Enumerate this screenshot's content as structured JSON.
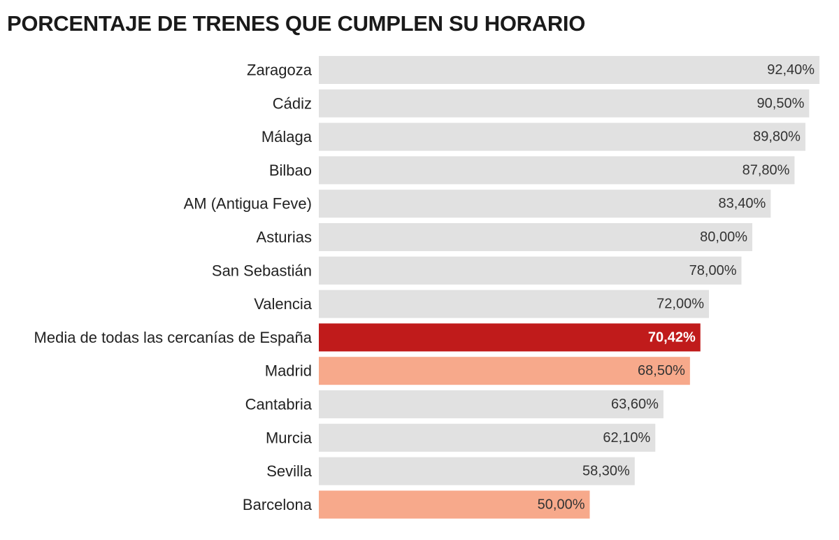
{
  "chart_data": {
    "type": "bar",
    "orientation": "horizontal",
    "title": "PORCENTAJE DE TRENES QUE CUMPLEN SU HORARIO",
    "categories": [
      "Zaragoza",
      "Cádiz",
      "Málaga",
      "Bilbao",
      "AM (Antigua Feve)",
      "Asturias",
      "San Sebastián",
      "Valencia",
      "Media de todas las cercanías de España",
      "Madrid",
      "Cantabria",
      "Murcia",
      "Sevilla",
      "Barcelona"
    ],
    "values": [
      92.4,
      90.5,
      89.8,
      87.8,
      83.4,
      80.0,
      78.0,
      72.0,
      70.42,
      68.5,
      63.6,
      62.1,
      58.3,
      50.0
    ],
    "value_labels": [
      "92,40%",
      "90,50%",
      "89,80%",
      "87,80%",
      "83,40%",
      "80,00%",
      "78,00%",
      "72,00%",
      "70,42%",
      "68,50%",
      "63,60%",
      "62,10%",
      "58,30%",
      "50,00%"
    ],
    "highlight": [
      "default",
      "default",
      "default",
      "default",
      "default",
      "default",
      "default",
      "default",
      "average",
      "emphasis",
      "default",
      "default",
      "default",
      "emphasis"
    ],
    "colors": {
      "default": "#e1e1e1",
      "average": "#c01b1b",
      "emphasis": "#f7a98b",
      "label_default": "#333333",
      "label_average": "#ffffff",
      "category_text": "#222222"
    },
    "xlim": [
      0,
      100
    ],
    "grid": false,
    "legend": "none"
  }
}
